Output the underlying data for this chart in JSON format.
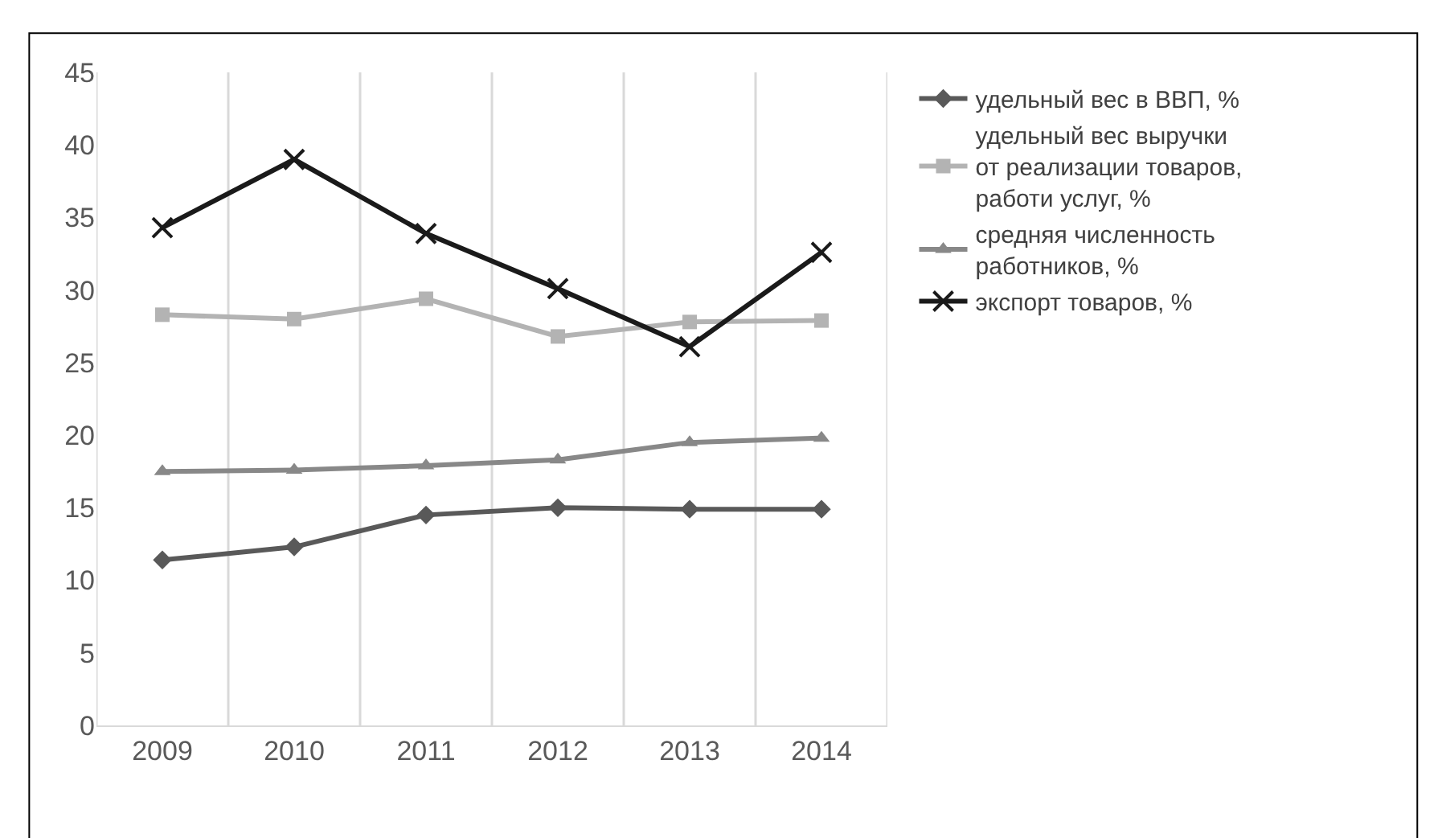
{
  "chart_data": {
    "type": "line",
    "categories": [
      "2009",
      "2010",
      "2011",
      "2012",
      "2013",
      "2014"
    ],
    "series": [
      {
        "name": "удельный вес в ВВП, %",
        "color": "#595959",
        "marker": "diamond",
        "values": [
          11.4,
          12.3,
          14.5,
          15.0,
          14.9,
          14.9
        ]
      },
      {
        "name": "удельный вес выручки от реализации товаров, работи услуг, %",
        "color": "#b3b3b3",
        "marker": "square",
        "values": [
          28.3,
          28.0,
          29.4,
          26.8,
          27.8,
          27.9
        ]
      },
      {
        "name": "средняя численность работников, %",
        "color": "#888888",
        "marker": "triangle",
        "values": [
          17.5,
          17.6,
          17.9,
          18.3,
          19.5,
          19.8
        ]
      },
      {
        "name": "экспорт товаров, %",
        "color": "#1a1a1a",
        "marker": "cross",
        "values": [
          34.3,
          39.0,
          33.9,
          30.1,
          26.1,
          32.6
        ]
      }
    ],
    "ylim": [
      0,
      45
    ],
    "yticks": [
      0,
      5,
      10,
      15,
      20,
      25,
      30,
      35,
      40,
      45
    ],
    "grid": "x",
    "legend": "right",
    "line_style": "solid"
  }
}
